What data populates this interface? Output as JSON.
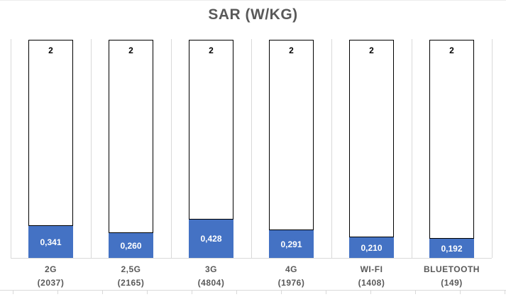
{
  "title": "SAR (W/KG)",
  "chart_data": {
    "type": "bar",
    "subtype": "100%-stacked-column",
    "title": "SAR (W/KG)",
    "xlabel": "",
    "ylabel": "",
    "grid": "vertical-category-boundaries",
    "legend": "none",
    "categories": [
      {
        "line1": "2G",
        "line2": "(2037)"
      },
      {
        "line1": "2,5G",
        "line2": "(2165)"
      },
      {
        "line1": "3G",
        "line2": "(4804)"
      },
      {
        "line1": "4G",
        "line2": "(1976)"
      },
      {
        "line1": "WI-FI",
        "line2": "(1408)"
      },
      {
        "line1": "BLUETOOTH",
        "line2": "(149)"
      }
    ],
    "series": [
      {
        "role": "sar-value",
        "color": "#4472c4",
        "values": [
          0.341,
          0.26,
          0.428,
          0.291,
          0.21,
          0.192
        ],
        "labels": [
          "0,341",
          "0,260",
          "0,428",
          "0,291",
          "0,210",
          "0,192"
        ]
      },
      {
        "role": "limit",
        "color": "#ffffff",
        "values": [
          2,
          2,
          2,
          2,
          2,
          2
        ],
        "labels": [
          "2",
          "2",
          "2",
          "2",
          "2",
          "2"
        ]
      }
    ]
  },
  "colors": {
    "bar_fill": "#4472c4",
    "bar_value_text": "#ffffff",
    "limit_fill": "#ffffff",
    "limit_border": "#000000",
    "limit_text": "#000000",
    "title_text": "#595959",
    "category_text": "#595959",
    "gridline": "#d9d9d9"
  }
}
